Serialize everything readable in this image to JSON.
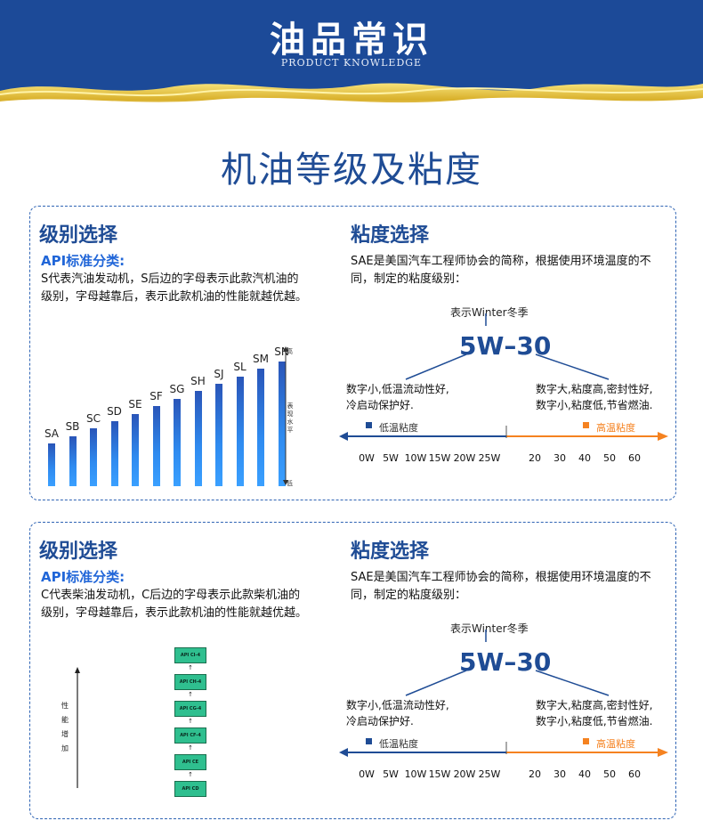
{
  "header": {
    "title": "油品常识",
    "subtitle": "PRODUCT KNOWLEDGE"
  },
  "main_title": "机油等级及粘度",
  "colors": {
    "brand_blue": "#1c4a98",
    "accent_blue": "#2166d8",
    "orange": "#f58220",
    "oil_gold": "#e8c44a"
  },
  "panel1": {
    "grade_title": "级别选择",
    "api_title": "API标准分类:",
    "api_desc": "S代表汽油发动机，S后边的字母表示此款汽机油的级别，字母越靠后，表示此款机油的性能就越优越。",
    "bars": [
      {
        "label": "SA",
        "value": 1
      },
      {
        "label": "SB",
        "value": 2
      },
      {
        "label": "SC",
        "value": 3
      },
      {
        "label": "SD",
        "value": 4
      },
      {
        "label": "SE",
        "value": 5
      },
      {
        "label": "SF",
        "value": 6
      },
      {
        "label": "SG",
        "value": 7
      },
      {
        "label": "SH",
        "value": 8
      },
      {
        "label": "SJ",
        "value": 9
      },
      {
        "label": "SL",
        "value": 10
      },
      {
        "label": "SM",
        "value": 11
      },
      {
        "label": "SN",
        "value": 12
      }
    ],
    "axis_high": "高",
    "axis_mid": "表现水平",
    "axis_low": "低",
    "viscosity": {
      "title": "粘度选择",
      "desc": "SAE是美国汽车工程师协会的简称，根据使用环境温度的不同，制定的粘度级别：",
      "winter": "表示Winter冬季",
      "grade": "5W–30",
      "left_note_1": "数字小,低温流动性好,",
      "left_note_2": "冷启动保护好.",
      "right_note_1": "数字大,粘度高,密封性好,",
      "right_note_2": "数字小,粘度低,节省燃油.",
      "legend_low": "低温粘度",
      "legend_high": "高温粘度",
      "ticks_low": [
        "0W",
        "5W",
        "10W",
        "15W",
        "20W",
        "25W"
      ],
      "ticks_high": [
        "20",
        "30",
        "40",
        "50",
        "60"
      ]
    }
  },
  "panel2": {
    "grade_title": "级别选择",
    "api_title": "API标准分类:",
    "api_desc": "C代表柴油发动机，C后边的字母表示此款柴机油的级别，字母越靠后，表示此款机油的性能就越优越。",
    "ladder": [
      "API CI-4",
      "API CH-4",
      "API CG-4",
      "API CF-4",
      "API CE",
      "API CD"
    ],
    "perf_chars": [
      "性",
      "能",
      "增",
      "加"
    ],
    "viscosity": {
      "title": "粘度选择",
      "desc": "SAE是美国汽车工程师协会的简称，根据使用环境温度的不同，制定的粘度级别：",
      "winter": "表示Winter冬季",
      "grade": "5W–30",
      "left_note_1": "数字小,低温流动性好,",
      "left_note_2": "冷启动保护好.",
      "right_note_1": "数字大,粘度高,密封性好,",
      "right_note_2": "数字小,粘度低,节省燃油.",
      "legend_low": "低温粘度",
      "legend_high": "高温粘度",
      "ticks_low": [
        "0W",
        "5W",
        "10W",
        "15W",
        "20W",
        "25W"
      ],
      "ticks_high": [
        "20",
        "30",
        "40",
        "50",
        "60"
      ]
    }
  }
}
